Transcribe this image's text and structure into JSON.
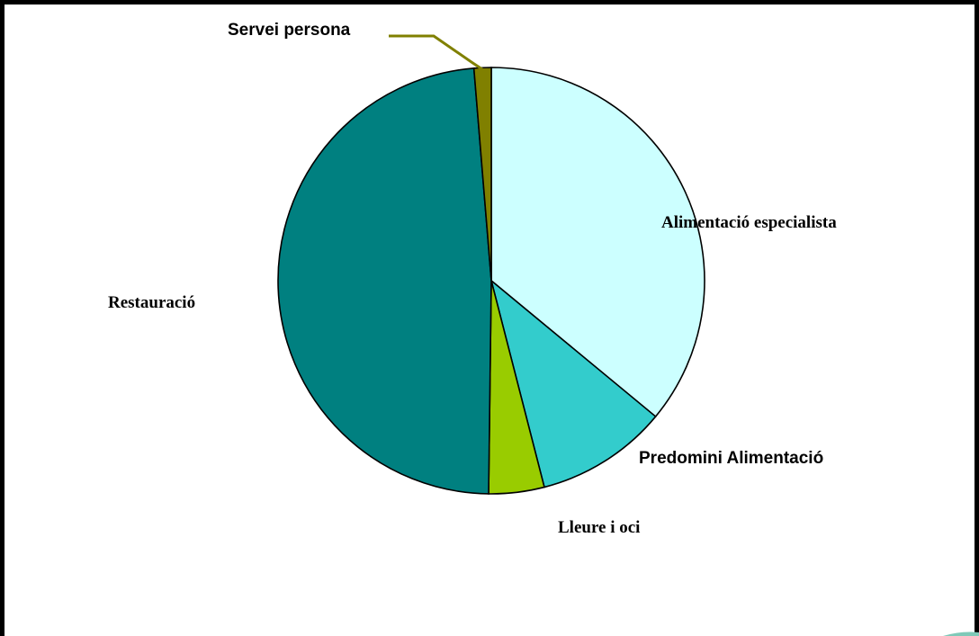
{
  "chart_data": {
    "type": "pie",
    "title": "",
    "slices": [
      {
        "label": "Alimentació especialista",
        "value": 36.0,
        "color": "#ccffff",
        "font": "serif"
      },
      {
        "label": "Predomini Alimentació",
        "value": 10.0,
        "color": "#33cccc",
        "font": "sans"
      },
      {
        "label": "Lleure i oci",
        "value": 4.2,
        "color": "#99cc00",
        "font": "serif"
      },
      {
        "label": "Restauració",
        "value": 48.5,
        "color": "#008080",
        "font": "serif"
      },
      {
        "label": "Servei persona",
        "value": 1.3,
        "color": "#808000",
        "font": "sans"
      }
    ],
    "legend": "none",
    "start": "12 o'clock, clockwise"
  }
}
